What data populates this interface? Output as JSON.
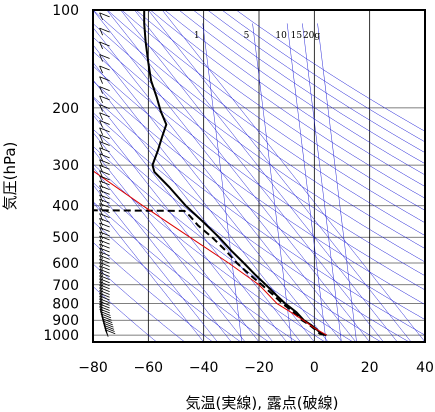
{
  "chart_data": {
    "type": "line",
    "title": "",
    "xlabel": "気温(実線), 露点(破線)",
    "ylabel": "気圧(hPa)",
    "x_range": [
      -80,
      40
    ],
    "y_range": [
      100,
      1050
    ],
    "y_scale": "log",
    "x_ticks": [
      "−80",
      "−60",
      "−40",
      "−20",
      "0",
      "20",
      "40"
    ],
    "x_tick_values": [
      -80,
      -60,
      -40,
      -20,
      0,
      20,
      40
    ],
    "y_ticks": [
      "100",
      "200",
      "300",
      "400",
      "500",
      "600",
      "700",
      "800",
      "900",
      "1000"
    ],
    "y_tick_values": [
      100,
      200,
      300,
      400,
      500,
      600,
      700,
      800,
      900,
      1000
    ],
    "mixing_ratio_labels": [
      "1",
      "5",
      "10",
      "15",
      "20g"
    ],
    "mixing_ratio_label_positions": [
      {
        "t": -42.5,
        "p": 112
      },
      {
        "t": -24.5,
        "p": 112
      },
      {
        "t": -12.0,
        "p": 112
      },
      {
        "t": -6.5,
        "p": 112
      },
      {
        "t": -1.0,
        "p": 112
      }
    ],
    "skew_factor": 1.4,
    "series": [
      {
        "name": "",
        "style": "solid",
        "color": "#000000",
        "points": [
          [
            4.4,
            1000
          ],
          [
            2.5,
            990
          ],
          [
            0.8,
            960
          ],
          [
            -1.2,
            930
          ],
          [
            -3.8,
            900
          ],
          [
            -6.5,
            850
          ],
          [
            -10.5,
            800
          ],
          [
            -14.0,
            750
          ],
          [
            -17.5,
            700
          ],
          [
            -21.5,
            650
          ],
          [
            -25.5,
            600
          ],
          [
            -30.0,
            550
          ],
          [
            -34.5,
            500
          ],
          [
            -40.0,
            450
          ],
          [
            -46.5,
            400
          ],
          [
            -52.5,
            350
          ],
          [
            -57.8,
            315
          ],
          [
            -58.5,
            300
          ],
          [
            -56.5,
            270
          ],
          [
            -55.0,
            245
          ],
          [
            -53.5,
            225
          ],
          [
            -55.5,
            205
          ],
          [
            -57.0,
            185
          ],
          [
            -59.0,
            165
          ],
          [
            -60.0,
            145
          ],
          [
            -61.0,
            125
          ],
          [
            -61.5,
            110
          ],
          [
            -61.5,
            100
          ]
        ]
      },
      {
        "name": "",
        "style": "dashed",
        "color": "#000000",
        "points": [
          [
            3.8,
            1000
          ],
          [
            2.0,
            990
          ],
          [
            0.2,
            960
          ],
          [
            -1.8,
            930
          ],
          [
            -4.5,
            900
          ],
          [
            -7.5,
            850
          ],
          [
            -11.5,
            800
          ],
          [
            -15.0,
            750
          ],
          [
            -19.0,
            700
          ],
          [
            -23.5,
            650
          ],
          [
            -28.0,
            600
          ],
          [
            -32.0,
            550
          ],
          [
            -37.0,
            500
          ],
          [
            -42.0,
            460
          ],
          [
            -45.0,
            430
          ],
          [
            -47.0,
            415
          ],
          [
            -80.0,
            413
          ]
        ]
      },
      {
        "name": "",
        "style": "solid",
        "color": "#dd0000",
        "points": [
          [
            4.4,
            1000
          ],
          [
            0.0,
            950
          ],
          [
            -4.0,
            900
          ],
          [
            -8.5,
            850
          ],
          [
            -13.5,
            800
          ],
          [
            -20.0,
            700
          ],
          [
            -31.0,
            600
          ],
          [
            -45.0,
            500
          ],
          [
            -62.0,
            400
          ],
          [
            -83.0,
            300
          ]
        ]
      }
    ],
    "wind_barbs": {
      "x_temperature": -74,
      "note": "dense column of wind barbs along the left edge"
    },
    "grid": true,
    "colors": {
      "isotherm": "#000000",
      "isobar": "#555555",
      "dry_adiabat": "#1a1ad6",
      "moist_adiabat": "#1a1ad6",
      "mixing_ratio": "#1a1ad6",
      "parcel": "#dd0000"
    }
  }
}
